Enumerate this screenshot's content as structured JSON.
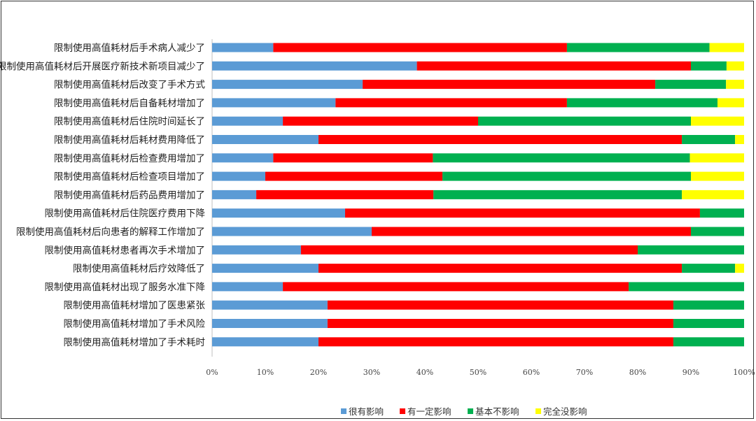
{
  "chart_data": {
    "type": "bar",
    "orientation": "horizontal",
    "stacked": true,
    "categories": [
      "限制使用高值耗材后手术病人减少了",
      "限制使用高值耗材后开展医疗新技术新项目减少了",
      "限制使用高值耗材后改变了手术方式",
      "限制使用高值耗材后自备耗材增加了",
      "限制使用高值耗材后住院时间延长了",
      "限制使用高值耗材后耗材费用降低了",
      "限制使用高值耗材后检查费用增加了",
      "限制使用高值耗材后检查项目增加了",
      "限制使用高值耗材后药品费用增加了",
      "限制使用高值耗材后住院医疗费用下降",
      "限制使用高值耗材后向患者的解释工作增加了",
      "限制使用高值耗材患者再次手术增加了",
      "限制使用高值耗材后疗效降低了",
      "限制使用高值耗材出现了服务水准下降",
      "限制使用高值耗材增加了医患紧张",
      "限制使用高值耗材增加了手术风险",
      "限制使用高值耗材增加了手术耗时"
    ],
    "series": [
      {
        "name": "很有影响",
        "color": "#5b9bd5",
        "values": [
          11.5,
          38.5,
          28.3,
          23.2,
          13.3,
          20,
          11.5,
          10,
          8.3,
          25,
          30,
          16.7,
          20,
          13.3,
          21.7,
          21.7,
          20
        ]
      },
      {
        "name": "有一定影响",
        "color": "#ff0000",
        "values": [
          55.2,
          51.5,
          55,
          43.5,
          36.7,
          68.3,
          30,
          33.3,
          33.3,
          66.7,
          60,
          63.3,
          68.3,
          65,
          65,
          65,
          66.7
        ]
      },
      {
        "name": "基本不影响",
        "color": "#00b050",
        "values": [
          26.8,
          6.7,
          13.3,
          28.3,
          40,
          10,
          48.3,
          46.7,
          46.7,
          8.3,
          10,
          20,
          10,
          21.7,
          13.3,
          13.3,
          13.3
        ]
      },
      {
        "name": "完全没影响",
        "color": "#ffff00",
        "values": [
          6.5,
          3.3,
          3.4,
          5,
          10,
          1.7,
          10.2,
          10,
          11.7,
          0,
          0,
          0,
          1.7,
          0,
          0,
          0,
          0
        ]
      }
    ],
    "x_ticks": [
      "0%",
      "10%",
      "20%",
      "30%",
      "40%",
      "50%",
      "60%",
      "70%",
      "80%",
      "90%",
      "100%"
    ],
    "xlim": [
      0,
      100
    ],
    "legend_position": "bottom",
    "grid": false,
    "title": "",
    "xlabel": "",
    "ylabel": ""
  }
}
